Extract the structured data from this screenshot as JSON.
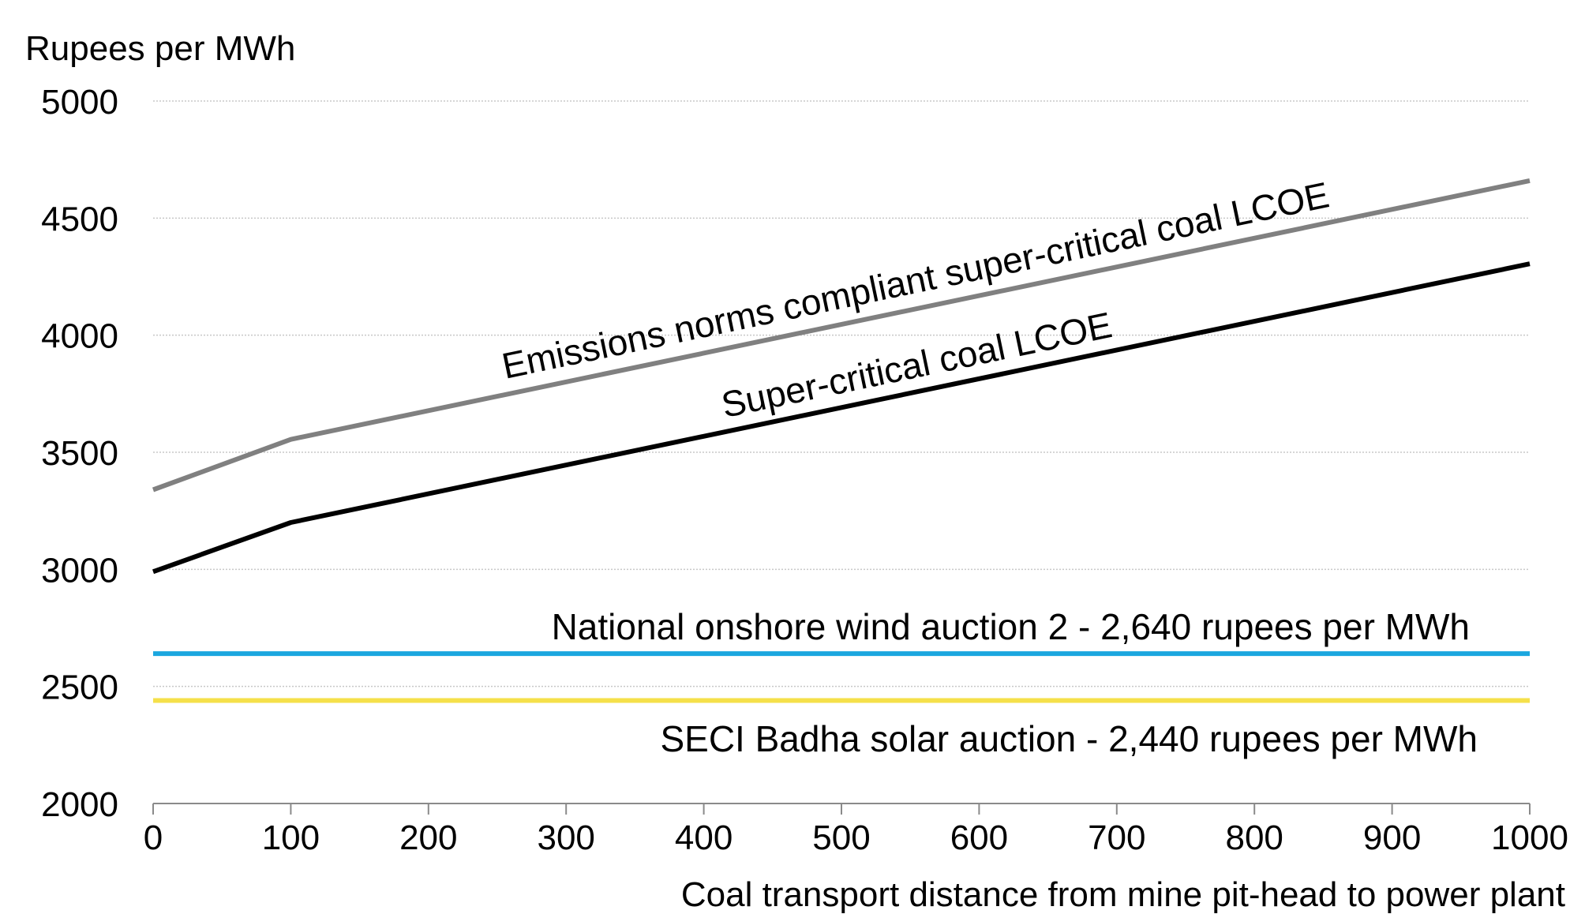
{
  "chart_data": {
    "type": "line",
    "title": "",
    "ylabel": "Rupees per MWh",
    "xlabel": "Coal transport distance from mine pit-head to power plant",
    "xlim": [
      0,
      1000
    ],
    "ylim": [
      2000,
      5000
    ],
    "x_ticks": [
      0,
      100,
      200,
      300,
      400,
      500,
      600,
      700,
      800,
      900,
      1000
    ],
    "y_ticks": [
      2000,
      2500,
      3000,
      3500,
      4000,
      4500,
      5000
    ],
    "grid": "horizontal",
    "legend": "none",
    "series": [
      {
        "name": "Emissions norms compliant super-critical coal LCOE",
        "color": "#808080",
        "x": [
          0,
          100,
          1000
        ],
        "y": [
          3340,
          3555,
          4660
        ]
      },
      {
        "name": "Super-critical coal LCOE",
        "color": "#000000",
        "x": [
          0,
          100,
          1000
        ],
        "y": [
          2990,
          3200,
          4305
        ]
      },
      {
        "name": "National onshore wind auction 2 - 2,640 rupees per MWh",
        "color": "#1ba7df",
        "x": [
          0,
          1000
        ],
        "y": [
          2640,
          2640
        ]
      },
      {
        "name": "SECI Badha solar auction - 2,440 rupees per MWh",
        "color": "#f5e04a",
        "x": [
          0,
          1000
        ],
        "y": [
          2440,
          2440
        ]
      }
    ]
  }
}
